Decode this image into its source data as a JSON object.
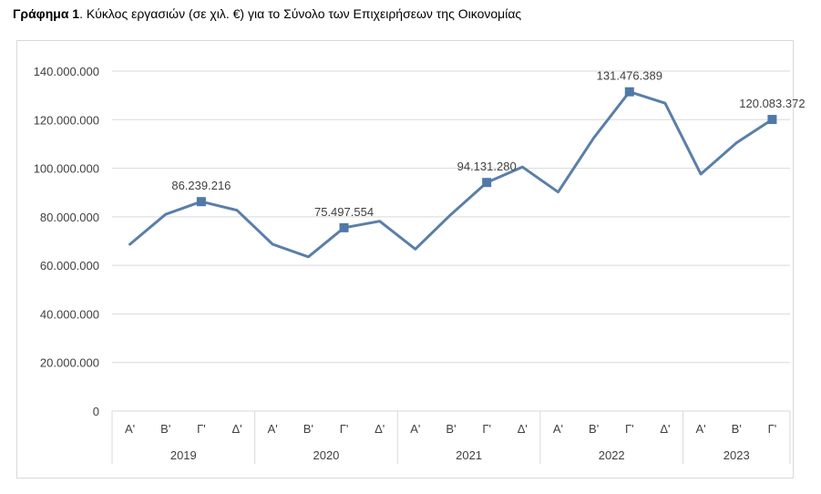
{
  "title": {
    "bold": "Γράφημα 1",
    "rest": ". Κύκλος εργασιών (σε χιλ. €) για το Σύνολο των Επιχειρήσεων της Οικονομίας"
  },
  "colors": {
    "line": "#5a7fa8",
    "marker": "#4f79a8",
    "grid": "#d9d9d9",
    "text": "#404040"
  },
  "chart_data": {
    "type": "line",
    "title": "Κύκλος εργασιών (σε χιλ. €) για το Σύνολο των Επιχειρήσεων της Οικονομίας",
    "ylim": [
      0,
      140000000
    ],
    "y_ticks": [
      0,
      20000000,
      40000000,
      60000000,
      80000000,
      100000000,
      120000000,
      140000000
    ],
    "y_tick_labels": [
      "0",
      "20.000.000",
      "40.000.000",
      "60.000.000",
      "80.000.000",
      "100.000.000",
      "120.000.000",
      "140.000.000"
    ],
    "years": [
      "2019",
      "2020",
      "2021",
      "2022",
      "2023"
    ],
    "quarters": [
      [
        "Α'",
        "Β'",
        "Γ'",
        "Δ'"
      ],
      [
        "Α'",
        "Β'",
        "Γ'",
        "Δ'"
      ],
      [
        "Α'",
        "Β'",
        "Γ'",
        "Δ'"
      ],
      [
        "Α'",
        "Β'",
        "Γ'",
        "Δ'"
      ],
      [
        "Α'",
        "Β'",
        "Γ'"
      ]
    ],
    "series": [
      {
        "name": "Κύκλος εργασιών",
        "values": [
          68700000,
          81000000,
          86239216,
          82700000,
          68700000,
          63500000,
          75497554,
          78200000,
          66700000,
          81000000,
          94131280,
          100500000,
          90200000,
          112500000,
          131476389,
          126800000,
          97600000,
          110500000,
          120083372
        ]
      }
    ],
    "markers": [
      {
        "index": 2,
        "label": "86.239.216"
      },
      {
        "index": 6,
        "label": "75.497.554"
      },
      {
        "index": 10,
        "label": "94.131.280"
      },
      {
        "index": 14,
        "label": "131.476.389"
      },
      {
        "index": 18,
        "label": "120.083.372"
      }
    ]
  }
}
